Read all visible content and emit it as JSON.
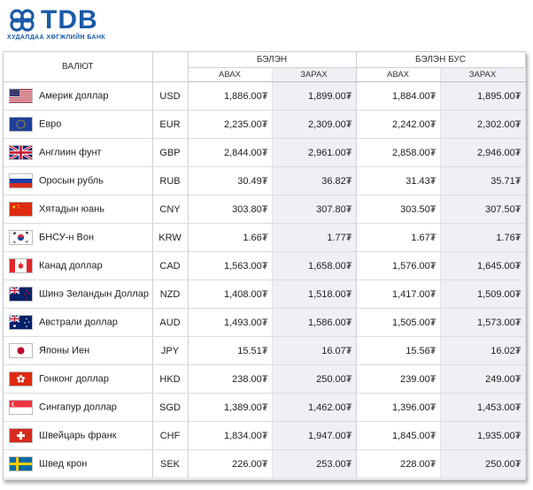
{
  "brand": {
    "name": "TDB",
    "subtitle": "ХУДАЛДАА ХӨГЖЛИЙН БАНК",
    "color": "#1a5aa8"
  },
  "table": {
    "currency_header": "ВАЛЮТ",
    "groups": [
      {
        "label": "БЭЛЭН",
        "buy": "АВАХ",
        "sell": "ЗАРАХ"
      },
      {
        "label": "БЭЛЭН БУС",
        "buy": "АВАХ",
        "sell": "ЗАРАХ"
      }
    ],
    "rows": [
      {
        "flag": "flag-usa-icon",
        "name": "Америк доллар",
        "code": "USD",
        "cash_buy": "1,886.00₮",
        "cash_sell": "1,899.00₮",
        "noncash_buy": "1,884.00₮",
        "noncash_sell": "1,895.00₮"
      },
      {
        "flag": "flag-eu-icon",
        "name": "Евро",
        "code": "EUR",
        "cash_buy": "2,235.00₮",
        "cash_sell": "2,309.00₮",
        "noncash_buy": "2,242.00₮",
        "noncash_sell": "2,302.00₮"
      },
      {
        "flag": "flag-uk-icon",
        "name": "Англиин фунт",
        "code": "GBP",
        "cash_buy": "2,844.00₮",
        "cash_sell": "2,961.00₮",
        "noncash_buy": "2,858.00₮",
        "noncash_sell": "2,946.00₮"
      },
      {
        "flag": "flag-russia-icon",
        "name": "Оросын рубль",
        "code": "RUB",
        "cash_buy": "30.49₮",
        "cash_sell": "36.82₮",
        "noncash_buy": "31.43₮",
        "noncash_sell": "35.71₮"
      },
      {
        "flag": "flag-china-icon",
        "name": "Хятадын юань",
        "code": "CNY",
        "cash_buy": "303.80₮",
        "cash_sell": "307.80₮",
        "noncash_buy": "303.50₮",
        "noncash_sell": "307.50₮"
      },
      {
        "flag": "flag-korea-icon",
        "name": "БНСУ-н Вон",
        "code": "KRW",
        "cash_buy": "1.66₮",
        "cash_sell": "1.77₮",
        "noncash_buy": "1.67₮",
        "noncash_sell": "1.76₮"
      },
      {
        "flag": "flag-canada-icon",
        "name": "Канад доллар",
        "code": "CAD",
        "cash_buy": "1,563.00₮",
        "cash_sell": "1,658.00₮",
        "noncash_buy": "1,576.00₮",
        "noncash_sell": "1,645.00₮"
      },
      {
        "flag": "flag-new-zealand-icon",
        "name": "Шинэ Зеландын Доллар",
        "code": "NZD",
        "cash_buy": "1,408.00₮",
        "cash_sell": "1,518.00₮",
        "noncash_buy": "1,417.00₮",
        "noncash_sell": "1,509.00₮"
      },
      {
        "flag": "flag-australia-icon",
        "name": "Австрали доллар",
        "code": "AUD",
        "cash_buy": "1,493.00₮",
        "cash_sell": "1,586.00₮",
        "noncash_buy": "1,505.00₮",
        "noncash_sell": "1,573.00₮"
      },
      {
        "flag": "flag-japan-icon",
        "name": "Японы Иен",
        "code": "JPY",
        "cash_buy": "15.51₮",
        "cash_sell": "16.07₮",
        "noncash_buy": "15.56₮",
        "noncash_sell": "16.02₮"
      },
      {
        "flag": "flag-hong-kong-icon",
        "name": "Гонконг доллар",
        "code": "HKD",
        "cash_buy": "238.00₮",
        "cash_sell": "250.00₮",
        "noncash_buy": "239.00₮",
        "noncash_sell": "249.00₮"
      },
      {
        "flag": "flag-singapore-icon",
        "name": "Сингапур доллар",
        "code": "SGD",
        "cash_buy": "1,389.00₮",
        "cash_sell": "1,462.00₮",
        "noncash_buy": "1,396.00₮",
        "noncash_sell": "1,453.00₮"
      },
      {
        "flag": "flag-switzerland-icon",
        "name": "Швейцарь франк",
        "code": "CHF",
        "cash_buy": "1,834.00₮",
        "cash_sell": "1,947.00₮",
        "noncash_buy": "1,845.00₮",
        "noncash_sell": "1,935.00₮"
      },
      {
        "flag": "flag-sweden-icon",
        "name": "Швед крон",
        "code": "SEK",
        "cash_buy": "226.00₮",
        "cash_sell": "253.00₮",
        "noncash_buy": "228.00₮",
        "noncash_sell": "250.00₮"
      }
    ]
  }
}
